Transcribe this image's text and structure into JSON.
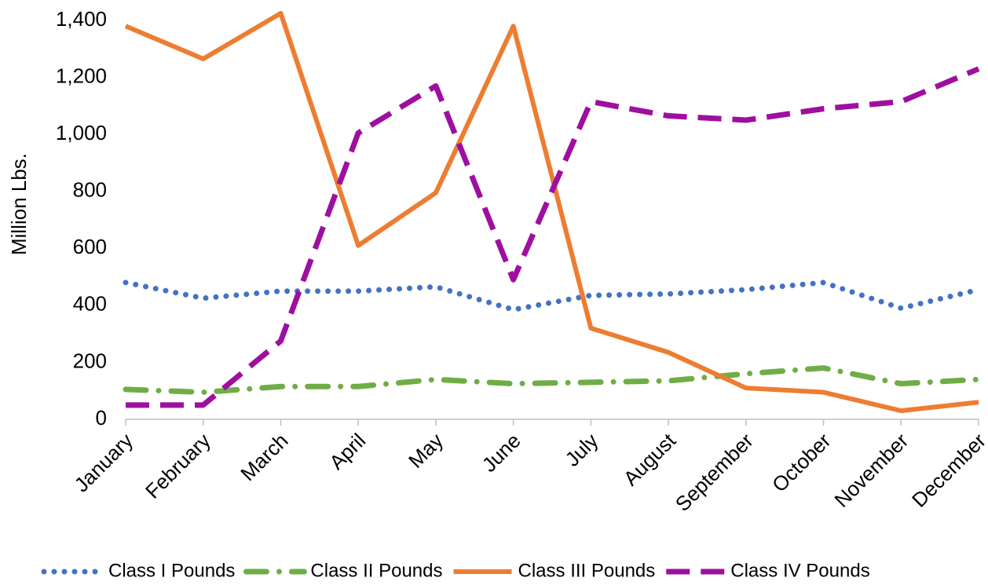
{
  "chart_data": {
    "type": "line",
    "y_label": "Million Lbs.",
    "categories": [
      "January",
      "February",
      "March",
      "April",
      "May",
      "June",
      "July",
      "August",
      "September",
      "October",
      "November",
      "December"
    ],
    "series": [
      {
        "name": "Class I Pounds",
        "color": "#4472c4",
        "line_style": "dotted",
        "values": [
          480,
          425,
          450,
          450,
          465,
          385,
          435,
          440,
          455,
          480,
          390,
          455
        ]
      },
      {
        "name": "Class II Pounds",
        "color": "#70ad47",
        "line_style": "dash-dot",
        "values": [
          105,
          95,
          115,
          115,
          140,
          125,
          130,
          135,
          160,
          180,
          125,
          140
        ]
      },
      {
        "name": "Class III Pounds",
        "color": "#ed7d31",
        "line_style": "solid",
        "values": [
          1380,
          1265,
          1425,
          610,
          795,
          1380,
          320,
          235,
          110,
          95,
          30,
          60
        ]
      },
      {
        "name": "Class IV Pounds",
        "color": "#9e0fa0",
        "line_style": "dashed",
        "values": [
          50,
          50,
          275,
          1005,
          1170,
          490,
          1115,
          1065,
          1050,
          1090,
          1115,
          1230
        ]
      }
    ],
    "ylim": [
      0,
      1400
    ],
    "yticks": [
      0,
      200,
      400,
      600,
      800,
      {
        "value": 1000,
        "label": "1,000"
      },
      {
        "value": 1200,
        "label": "1,200"
      },
      {
        "value": 1400,
        "label": "1,400"
      }
    ],
    "grid": false,
    "legend": "bottom"
  }
}
